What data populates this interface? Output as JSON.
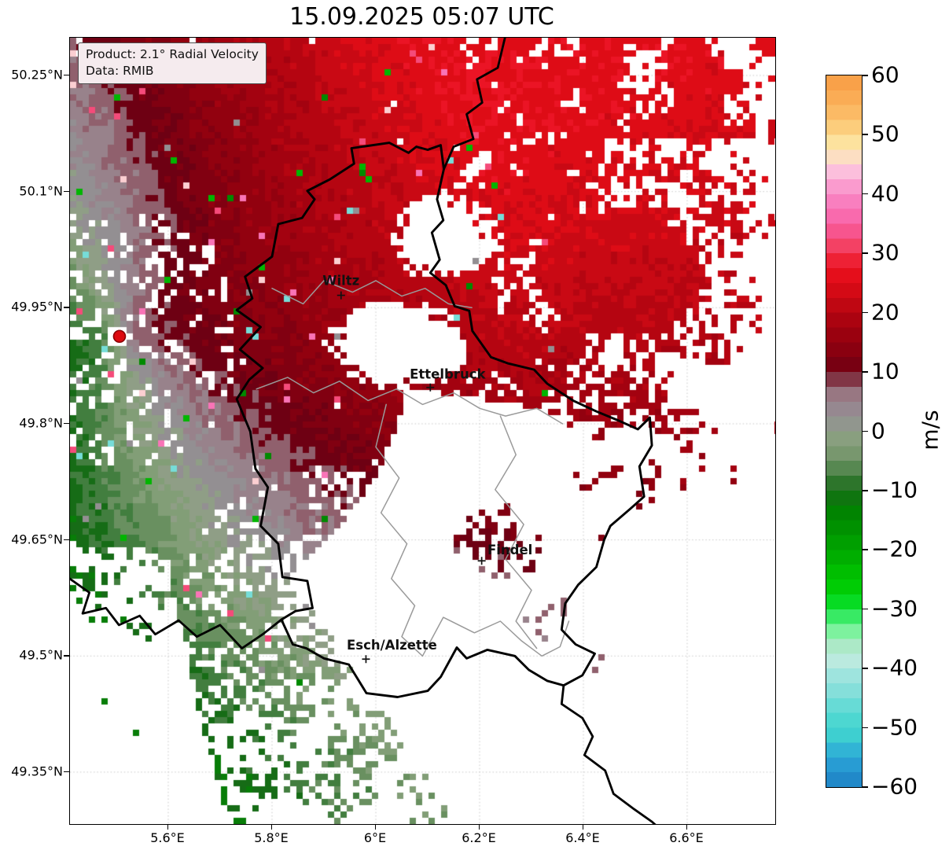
{
  "title": "15.09.2025 05:07 UTC",
  "annotation": {
    "line1": "Product: 2.1° Radial Velocity",
    "line2": "Data: RMIB"
  },
  "axes": {
    "lat_ticks": [
      {
        "label": "50.25°N",
        "deg": 50.25
      },
      {
        "label": "50.1°N",
        "deg": 50.1
      },
      {
        "label": "49.95°N",
        "deg": 49.95
      },
      {
        "label": "49.8°N",
        "deg": 49.8
      },
      {
        "label": "49.65°N",
        "deg": 49.65
      },
      {
        "label": "49.5°N",
        "deg": 49.5
      },
      {
        "label": "49.35°N",
        "deg": 49.35
      }
    ],
    "lon_ticks": [
      {
        "label": "5.6°E",
        "deg": 5.6
      },
      {
        "label": "5.8°E",
        "deg": 5.8
      },
      {
        "label": "6°E",
        "deg": 6.0
      },
      {
        "label": "6.2°E",
        "deg": 6.2
      },
      {
        "label": "6.4°E",
        "deg": 6.4
      },
      {
        "label": "6.6°E",
        "deg": 6.6
      }
    ]
  },
  "colorbar": {
    "unit_label": "m/s",
    "min": -60,
    "max": 60,
    "tick_values": [
      60,
      50,
      40,
      30,
      20,
      10,
      0,
      -10,
      -20,
      -30,
      -40,
      -50,
      -60
    ],
    "tick_labels": [
      "60",
      "50",
      "40",
      "30",
      "20",
      "10",
      "0",
      "−10",
      "−20",
      "−30",
      "−40",
      "−50",
      "−60"
    ],
    "stops": [
      [
        -60,
        "#1d7fc4"
      ],
      [
        -55,
        "#2ba6d8"
      ],
      [
        -51,
        "#3fd2cf"
      ],
      [
        -48,
        "#52d8d2"
      ],
      [
        -44,
        "#82dfda"
      ],
      [
        -40,
        "#abe6e0"
      ],
      [
        -38,
        "#c4ecdf"
      ],
      [
        -36,
        "#a9e9c4"
      ],
      [
        -34,
        "#83f2a4"
      ],
      [
        -32,
        "#4fee74"
      ],
      [
        -30,
        "#12e348"
      ],
      [
        -28,
        "#00d60c"
      ],
      [
        -25,
        "#00c500"
      ],
      [
        -22,
        "#00b300"
      ],
      [
        -20,
        "#00a600"
      ],
      [
        -17,
        "#009500"
      ],
      [
        -14,
        "#008500"
      ],
      [
        -12,
        "#0a7a0a"
      ],
      [
        -10,
        "#166c16"
      ],
      [
        -8,
        "#3a7a38"
      ],
      [
        -6,
        "#5b8a54"
      ],
      [
        -4,
        "#76966c"
      ],
      [
        -2,
        "#86a07b"
      ],
      [
        0,
        "#8f9e86"
      ],
      [
        2,
        "#929192"
      ],
      [
        4,
        "#968790"
      ],
      [
        6,
        "#9a7c86"
      ],
      [
        8,
        "#8d5664"
      ],
      [
        10,
        "#6e0013"
      ],
      [
        13,
        "#850010"
      ],
      [
        16,
        "#98010f"
      ],
      [
        19,
        "#ad0310"
      ],
      [
        22,
        "#c50813"
      ],
      [
        25,
        "#de0c16"
      ],
      [
        27,
        "#e90f1e"
      ],
      [
        29,
        "#ef2338"
      ],
      [
        31,
        "#f23f5f"
      ],
      [
        33,
        "#f64f83"
      ],
      [
        35,
        "#f85fa0"
      ],
      [
        37,
        "#f970b4"
      ],
      [
        40,
        "#f989c6"
      ],
      [
        42,
        "#fba6d3"
      ],
      [
        44,
        "#fcc2dd"
      ],
      [
        46,
        "#fcdcc6"
      ],
      [
        48,
        "#fde8a8"
      ],
      [
        50,
        "#fdd88d"
      ],
      [
        52,
        "#fcc672"
      ],
      [
        55,
        "#fbb25c"
      ],
      [
        58,
        "#f9a44c"
      ],
      [
        60,
        "#f89c45"
      ]
    ]
  },
  "map": {
    "extent": {
      "lon_min": 5.411,
      "lon_max": 6.77,
      "lat_min": 49.283,
      "lat_max": 50.299
    },
    "cities": [
      {
        "name": "Wiltz",
        "lon": 5.933,
        "lat": 49.966
      },
      {
        "name": "Ettelbruck",
        "lon": 6.105,
        "lat": 49.847
      },
      {
        "name": "Findel",
        "lon": 6.204,
        "lat": 49.623
      },
      {
        "name": "Esch/Alzette",
        "lon": 5.981,
        "lat": 49.496
      }
    ],
    "radar_site": {
      "lon": 5.506,
      "lat": 49.913
    }
  },
  "colors": {
    "background": "#ffffff",
    "border_country": "#000000",
    "border_region": "#9a9a9a",
    "grid": "#c9c9c9",
    "annotation_bg": "#f5ebee",
    "annotation_border": "#4d4d4d",
    "radar_dot": "#dd0a10",
    "radar_dot_edge": "#8a0005",
    "city_text": "#111111"
  },
  "chart_data": {
    "type": "heatmap",
    "title": "15.09.2025 05:07 UTC",
    "units": "m/s",
    "value_range": [
      -60,
      60
    ],
    "colorbar_ticks": [
      60,
      50,
      40,
      30,
      20,
      10,
      0,
      -10,
      -20,
      -30,
      -40,
      -50,
      -60
    ],
    "field_summary": [
      "Positive (red) radial velocities of +10 to +26 m/s cover the north and northeast sectors around the radar",
      "Negative (green) radial velocities of -10 to -30 m/s cover the southwest sector",
      "A near-zero grey/mauve zero-isodop band runs NNW-SSE through the radar site and past Esch/Alzette",
      "Central and southeastern Luxembourg is largely echo-free (white) with scattered bright-red cells",
      "A compact bright-red echo cluster sits near 6.3°E, 50.07°N; sparse red cells line the top edge"
    ]
  }
}
